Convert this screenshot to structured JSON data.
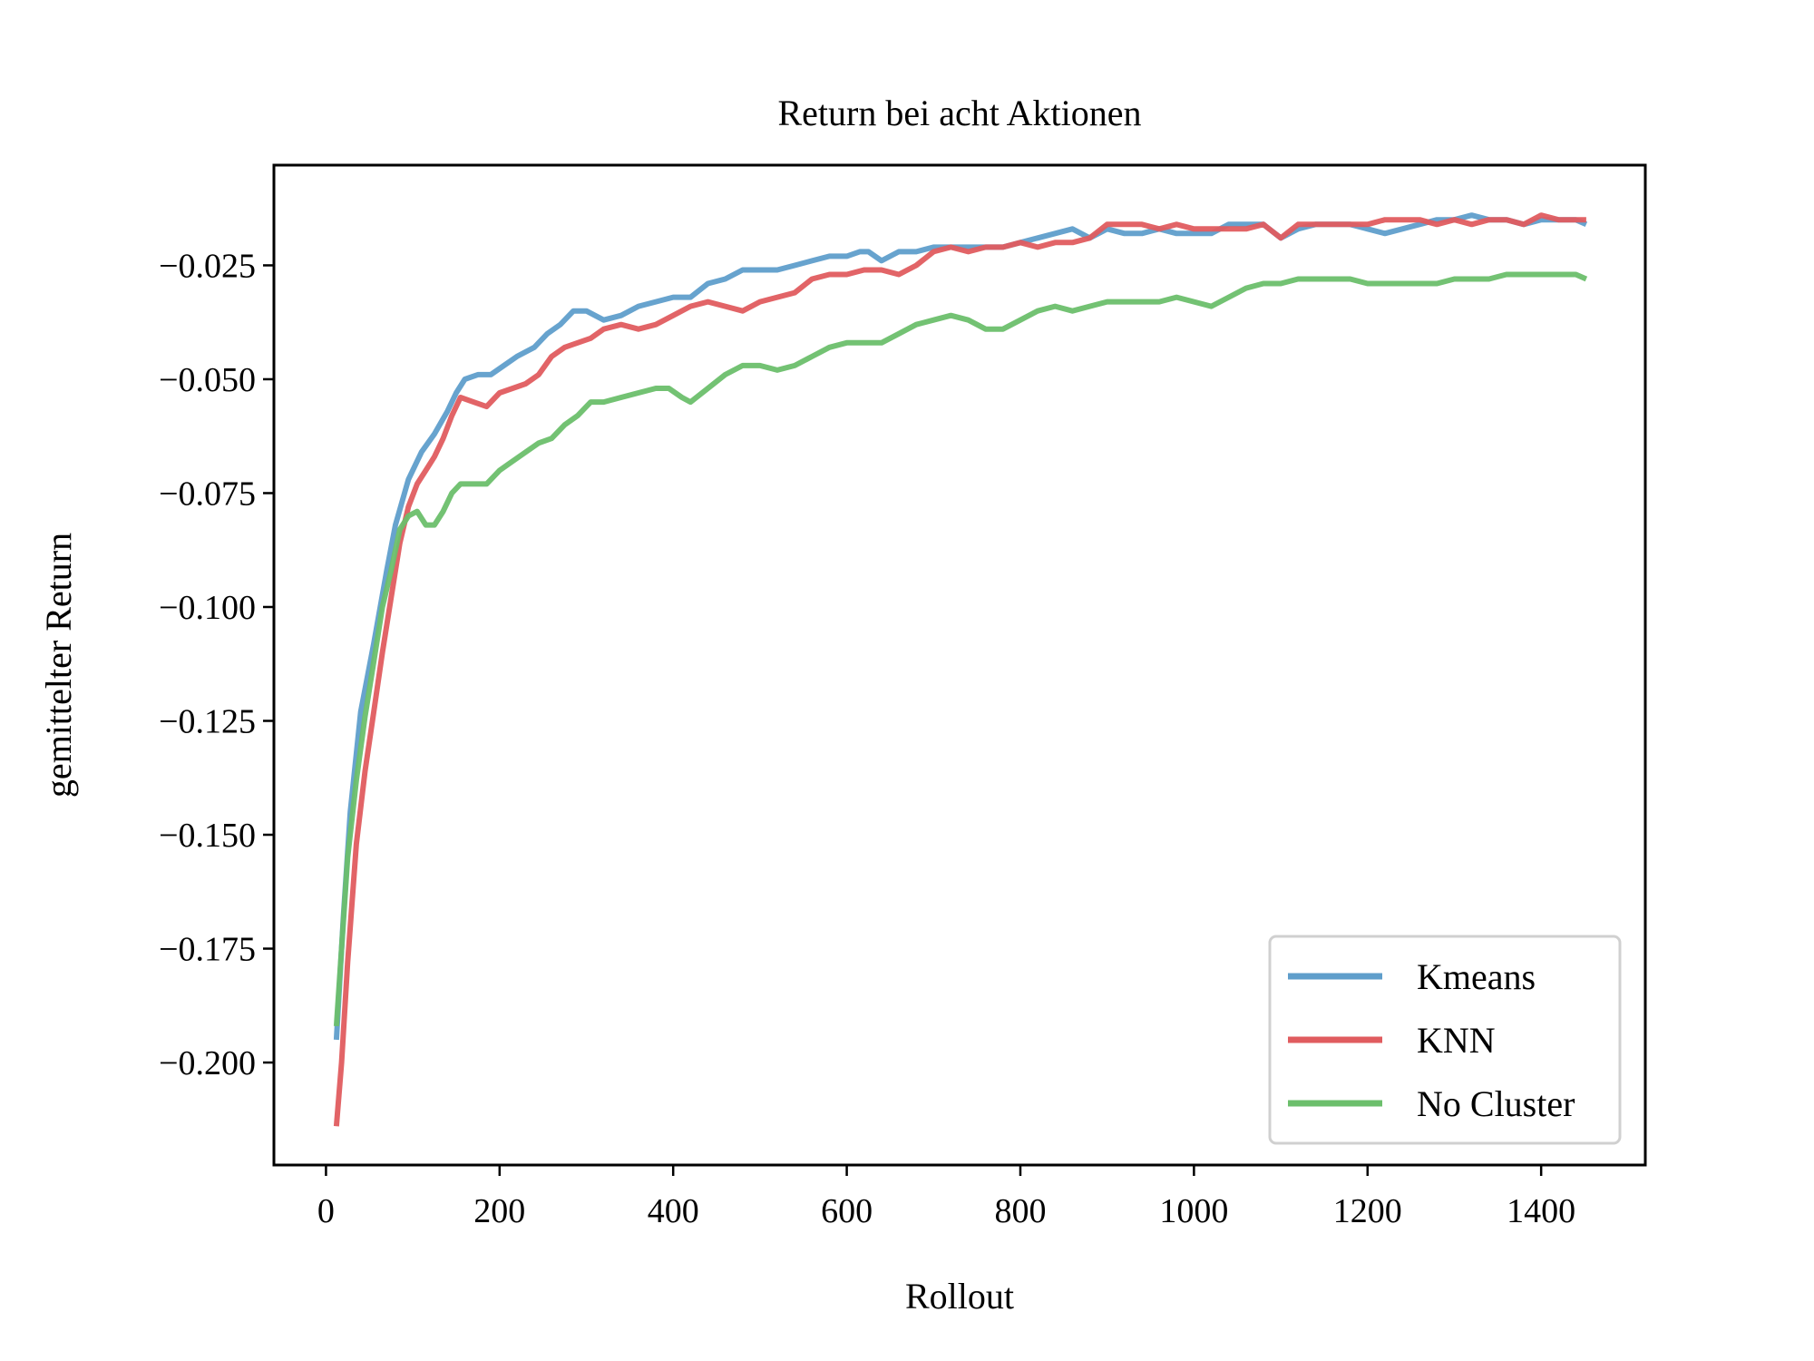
{
  "chart_data": {
    "type": "line",
    "title": "Return bei acht Aktionen",
    "xlabel": "Rollout",
    "ylabel": "gemittelter Return",
    "xlim": [
      -60,
      1520
    ],
    "ylim": [
      -0.2225,
      -0.003
    ],
    "xticks": [
      0,
      200,
      400,
      600,
      800,
      1000,
      1200,
      1400
    ],
    "xtick_labels": [
      "0",
      "200",
      "400",
      "600",
      "800",
      "1000",
      "1200",
      "1400"
    ],
    "yticks": [
      -0.025,
      -0.05,
      -0.075,
      -0.1,
      -0.125,
      -0.15,
      -0.175,
      -0.2
    ],
    "ytick_labels": [
      "−0.025",
      "−0.050",
      "−0.075",
      "−0.100",
      "−0.125",
      "−0.150",
      "−0.175",
      "−0.200"
    ],
    "grid": false,
    "legend_position": "lower-right",
    "series": [
      {
        "name": "Kmeans",
        "color": "#5f9ecb",
        "points": [
          [
            12,
            -0.195
          ],
          [
            20,
            -0.168
          ],
          [
            28,
            -0.145
          ],
          [
            40,
            -0.123
          ],
          [
            55,
            -0.108
          ],
          [
            70,
            -0.092
          ],
          [
            80,
            -0.082
          ],
          [
            95,
            -0.072
          ],
          [
            110,
            -0.066
          ],
          [
            125,
            -0.062
          ],
          [
            140,
            -0.057
          ],
          [
            150,
            -0.053
          ],
          [
            160,
            -0.05
          ],
          [
            175,
            -0.049
          ],
          [
            190,
            -0.049
          ],
          [
            205,
            -0.047
          ],
          [
            220,
            -0.045
          ],
          [
            240,
            -0.043
          ],
          [
            255,
            -0.04
          ],
          [
            270,
            -0.038
          ],
          [
            285,
            -0.035
          ],
          [
            300,
            -0.035
          ],
          [
            320,
            -0.037
          ],
          [
            340,
            -0.036
          ],
          [
            360,
            -0.034
          ],
          [
            380,
            -0.033
          ],
          [
            400,
            -0.032
          ],
          [
            420,
            -0.032
          ],
          [
            440,
            -0.029
          ],
          [
            460,
            -0.028
          ],
          [
            480,
            -0.026
          ],
          [
            500,
            -0.026
          ],
          [
            520,
            -0.026
          ],
          [
            540,
            -0.025
          ],
          [
            560,
            -0.024
          ],
          [
            580,
            -0.023
          ],
          [
            600,
            -0.023
          ],
          [
            615,
            -0.022
          ],
          [
            625,
            -0.022
          ],
          [
            640,
            -0.024
          ],
          [
            660,
            -0.022
          ],
          [
            680,
            -0.022
          ],
          [
            700,
            -0.021
          ],
          [
            720,
            -0.021
          ],
          [
            740,
            -0.021
          ],
          [
            760,
            -0.021
          ],
          [
            780,
            -0.021
          ],
          [
            800,
            -0.02
          ],
          [
            820,
            -0.019
          ],
          [
            840,
            -0.018
          ],
          [
            860,
            -0.017
          ],
          [
            880,
            -0.019
          ],
          [
            900,
            -0.017
          ],
          [
            920,
            -0.018
          ],
          [
            940,
            -0.018
          ],
          [
            960,
            -0.017
          ],
          [
            980,
            -0.018
          ],
          [
            1000,
            -0.018
          ],
          [
            1020,
            -0.018
          ],
          [
            1040,
            -0.016
          ],
          [
            1060,
            -0.016
          ],
          [
            1080,
            -0.016
          ],
          [
            1100,
            -0.019
          ],
          [
            1120,
            -0.017
          ],
          [
            1140,
            -0.016
          ],
          [
            1160,
            -0.016
          ],
          [
            1180,
            -0.016
          ],
          [
            1200,
            -0.017
          ],
          [
            1220,
            -0.018
          ],
          [
            1240,
            -0.017
          ],
          [
            1260,
            -0.016
          ],
          [
            1280,
            -0.015
          ],
          [
            1300,
            -0.015
          ],
          [
            1320,
            -0.014
          ],
          [
            1340,
            -0.015
          ],
          [
            1360,
            -0.015
          ],
          [
            1380,
            -0.016
          ],
          [
            1400,
            -0.015
          ],
          [
            1420,
            -0.015
          ],
          [
            1440,
            -0.015
          ],
          [
            1452,
            -0.016
          ]
        ]
      },
      {
        "name": "KNN",
        "color": "#e05c5f",
        "points": [
          [
            12,
            -0.214
          ],
          [
            18,
            -0.2
          ],
          [
            25,
            -0.178
          ],
          [
            35,
            -0.152
          ],
          [
            45,
            -0.136
          ],
          [
            55,
            -0.123
          ],
          [
            65,
            -0.11
          ],
          [
            75,
            -0.098
          ],
          [
            85,
            -0.086
          ],
          [
            95,
            -0.078
          ],
          [
            105,
            -0.073
          ],
          [
            115,
            -0.07
          ],
          [
            125,
            -0.067
          ],
          [
            135,
            -0.063
          ],
          [
            145,
            -0.058
          ],
          [
            155,
            -0.054
          ],
          [
            170,
            -0.055
          ],
          [
            185,
            -0.056
          ],
          [
            200,
            -0.053
          ],
          [
            215,
            -0.052
          ],
          [
            230,
            -0.051
          ],
          [
            245,
            -0.049
          ],
          [
            260,
            -0.045
          ],
          [
            275,
            -0.043
          ],
          [
            290,
            -0.042
          ],
          [
            305,
            -0.041
          ],
          [
            320,
            -0.039
          ],
          [
            340,
            -0.038
          ],
          [
            360,
            -0.039
          ],
          [
            380,
            -0.038
          ],
          [
            400,
            -0.036
          ],
          [
            420,
            -0.034
          ],
          [
            440,
            -0.033
          ],
          [
            460,
            -0.034
          ],
          [
            480,
            -0.035
          ],
          [
            500,
            -0.033
          ],
          [
            520,
            -0.032
          ],
          [
            540,
            -0.031
          ],
          [
            560,
            -0.028
          ],
          [
            580,
            -0.027
          ],
          [
            600,
            -0.027
          ],
          [
            620,
            -0.026
          ],
          [
            640,
            -0.026
          ],
          [
            660,
            -0.027
          ],
          [
            680,
            -0.025
          ],
          [
            700,
            -0.022
          ],
          [
            720,
            -0.021
          ],
          [
            740,
            -0.022
          ],
          [
            760,
            -0.021
          ],
          [
            780,
            -0.021
          ],
          [
            800,
            -0.02
          ],
          [
            820,
            -0.021
          ],
          [
            840,
            -0.02
          ],
          [
            860,
            -0.02
          ],
          [
            880,
            -0.019
          ],
          [
            900,
            -0.016
          ],
          [
            920,
            -0.016
          ],
          [
            940,
            -0.016
          ],
          [
            960,
            -0.017
          ],
          [
            980,
            -0.016
          ],
          [
            1000,
            -0.017
          ],
          [
            1020,
            -0.017
          ],
          [
            1040,
            -0.017
          ],
          [
            1060,
            -0.017
          ],
          [
            1080,
            -0.016
          ],
          [
            1100,
            -0.019
          ],
          [
            1120,
            -0.016
          ],
          [
            1140,
            -0.016
          ],
          [
            1160,
            -0.016
          ],
          [
            1180,
            -0.016
          ],
          [
            1200,
            -0.016
          ],
          [
            1220,
            -0.015
          ],
          [
            1240,
            -0.015
          ],
          [
            1260,
            -0.015
          ],
          [
            1280,
            -0.016
          ],
          [
            1300,
            -0.015
          ],
          [
            1320,
            -0.016
          ],
          [
            1340,
            -0.015
          ],
          [
            1360,
            -0.015
          ],
          [
            1380,
            -0.016
          ],
          [
            1400,
            -0.014
          ],
          [
            1420,
            -0.015
          ],
          [
            1440,
            -0.015
          ],
          [
            1452,
            -0.015
          ]
        ]
      },
      {
        "name": "No Cluster",
        "color": "#6cbf6c",
        "points": [
          [
            12,
            -0.192
          ],
          [
            18,
            -0.175
          ],
          [
            25,
            -0.155
          ],
          [
            35,
            -0.138
          ],
          [
            45,
            -0.124
          ],
          [
            55,
            -0.112
          ],
          [
            65,
            -0.1
          ],
          [
            75,
            -0.092
          ],
          [
            85,
            -0.083
          ],
          [
            95,
            -0.08
          ],
          [
            105,
            -0.079
          ],
          [
            115,
            -0.082
          ],
          [
            125,
            -0.082
          ],
          [
            135,
            -0.079
          ],
          [
            145,
            -0.075
          ],
          [
            155,
            -0.073
          ],
          [
            170,
            -0.073
          ],
          [
            185,
            -0.073
          ],
          [
            200,
            -0.07
          ],
          [
            215,
            -0.068
          ],
          [
            230,
            -0.066
          ],
          [
            245,
            -0.064
          ],
          [
            260,
            -0.063
          ],
          [
            275,
            -0.06
          ],
          [
            290,
            -0.058
          ],
          [
            305,
            -0.055
          ],
          [
            320,
            -0.055
          ],
          [
            340,
            -0.054
          ],
          [
            360,
            -0.053
          ],
          [
            380,
            -0.052
          ],
          [
            395,
            -0.052
          ],
          [
            410,
            -0.054
          ],
          [
            420,
            -0.055
          ],
          [
            440,
            -0.052
          ],
          [
            460,
            -0.049
          ],
          [
            480,
            -0.047
          ],
          [
            500,
            -0.047
          ],
          [
            520,
            -0.048
          ],
          [
            540,
            -0.047
          ],
          [
            560,
            -0.045
          ],
          [
            580,
            -0.043
          ],
          [
            600,
            -0.042
          ],
          [
            620,
            -0.042
          ],
          [
            640,
            -0.042
          ],
          [
            660,
            -0.04
          ],
          [
            680,
            -0.038
          ],
          [
            700,
            -0.037
          ],
          [
            720,
            -0.036
          ],
          [
            740,
            -0.037
          ],
          [
            760,
            -0.039
          ],
          [
            780,
            -0.039
          ],
          [
            800,
            -0.037
          ],
          [
            820,
            -0.035
          ],
          [
            840,
            -0.034
          ],
          [
            860,
            -0.035
          ],
          [
            880,
            -0.034
          ],
          [
            900,
            -0.033
          ],
          [
            920,
            -0.033
          ],
          [
            940,
            -0.033
          ],
          [
            960,
            -0.033
          ],
          [
            980,
            -0.032
          ],
          [
            1000,
            -0.033
          ],
          [
            1020,
            -0.034
          ],
          [
            1040,
            -0.032
          ],
          [
            1060,
            -0.03
          ],
          [
            1080,
            -0.029
          ],
          [
            1100,
            -0.029
          ],
          [
            1120,
            -0.028
          ],
          [
            1140,
            -0.028
          ],
          [
            1160,
            -0.028
          ],
          [
            1180,
            -0.028
          ],
          [
            1200,
            -0.029
          ],
          [
            1220,
            -0.029
          ],
          [
            1240,
            -0.029
          ],
          [
            1260,
            -0.029
          ],
          [
            1280,
            -0.029
          ],
          [
            1300,
            -0.028
          ],
          [
            1320,
            -0.028
          ],
          [
            1340,
            -0.028
          ],
          [
            1360,
            -0.027
          ],
          [
            1380,
            -0.027
          ],
          [
            1400,
            -0.027
          ],
          [
            1420,
            -0.027
          ],
          [
            1440,
            -0.027
          ],
          [
            1452,
            -0.028
          ]
        ]
      }
    ]
  }
}
